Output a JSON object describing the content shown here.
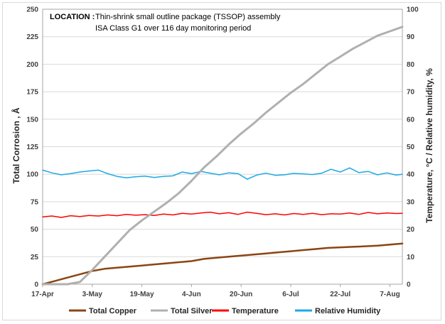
{
  "chart_data": {
    "type": "line",
    "annotation": {
      "label": "LOCATION :",
      "line1": "Thin-shrink small outline package (TSSOP) assembly",
      "line2": "ISA Class G1 over 116 day monitoring period"
    },
    "ylabel": "Total  Corrosion , Å",
    "y2label": "Temperature, °C / Relative humidity, %",
    "xlabel": "",
    "x_range_days": [
      0,
      116
    ],
    "ylim": [
      0,
      250
    ],
    "y2lim": [
      0,
      100
    ],
    "x_ticks": [
      {
        "label": "17-Apr",
        "day": 0
      },
      {
        "label": "3-May",
        "day": 16
      },
      {
        "label": "19-May",
        "day": 32
      },
      {
        "label": "4-Jun",
        "day": 48
      },
      {
        "label": "20-Jun",
        "day": 64
      },
      {
        "label": "6-Jul",
        "day": 80
      },
      {
        "label": "22-Jul",
        "day": 96
      },
      {
        "label": "7-Aug",
        "day": 112
      }
    ],
    "y_ticks": [
      0,
      25,
      50,
      75,
      100,
      125,
      150,
      175,
      200,
      225,
      250
    ],
    "y2_ticks": [
      0,
      10,
      20,
      30,
      40,
      50,
      60,
      70,
      80,
      90,
      100
    ],
    "series": [
      {
        "name": "Total Copper",
        "axis": "left",
        "color": "#8B4513",
        "width": 2.5,
        "x": [
          0,
          4,
          8,
          12,
          16,
          20,
          24,
          28,
          32,
          36,
          40,
          44,
          48,
          52,
          56,
          60,
          64,
          68,
          72,
          76,
          80,
          84,
          88,
          92,
          96,
          100,
          104,
          108,
          112,
          116
        ],
        "values": [
          0,
          3,
          6,
          9,
          12,
          14,
          15,
          16,
          17,
          18,
          19,
          20,
          21,
          23,
          24,
          25,
          26,
          27,
          28,
          29,
          30,
          31,
          32,
          33,
          33.5,
          34,
          34.5,
          35,
          36,
          37
        ]
      },
      {
        "name": "Total Silver",
        "axis": "left",
        "color": "#B0B0B0",
        "width": 3,
        "x": [
          0,
          8,
          12,
          16,
          20,
          24,
          28,
          32,
          36,
          40,
          44,
          48,
          52,
          56,
          60,
          64,
          68,
          72,
          76,
          80,
          84,
          88,
          92,
          96,
          100,
          104,
          108,
          112,
          116
        ],
        "values": [
          0,
          0,
          2,
          13,
          25,
          37,
          49,
          58,
          66,
          74,
          83,
          94,
          106,
          116,
          127,
          137,
          146,
          156,
          165,
          174,
          182,
          191,
          200,
          207,
          214,
          220,
          226,
          230,
          234
        ]
      },
      {
        "name": "Temperature",
        "axis": "right",
        "color": "#FF0000",
        "width": 1.5,
        "x": [
          0,
          3,
          6,
          9,
          12,
          15,
          18,
          21,
          24,
          27,
          30,
          33,
          36,
          39,
          42,
          45,
          48,
          51,
          54,
          57,
          60,
          63,
          66,
          69,
          72,
          75,
          78,
          81,
          84,
          87,
          90,
          93,
          96,
          99,
          102,
          105,
          108,
          111,
          114,
          116
        ],
        "values": [
          24.5,
          24.8,
          24.3,
          24.9,
          24.6,
          25.0,
          24.8,
          25.2,
          24.9,
          25.4,
          25.1,
          25.3,
          25.0,
          25.5,
          25.2,
          25.8,
          25.5,
          25.9,
          26.2,
          25.6,
          26.0,
          25.4,
          26.2,
          25.8,
          25.3,
          25.6,
          25.2,
          25.7,
          25.4,
          25.8,
          25.3,
          25.6,
          25.5,
          25.9,
          25.4,
          26.1,
          25.6,
          25.9,
          25.7,
          25.8
        ]
      },
      {
        "name": "Relative Humidity",
        "axis": "right",
        "color": "#1CA9E6",
        "width": 1.5,
        "x": [
          0,
          3,
          6,
          9,
          12,
          15,
          18,
          21,
          24,
          27,
          30,
          33,
          36,
          39,
          42,
          45,
          48,
          51,
          54,
          57,
          60,
          63,
          66,
          69,
          72,
          75,
          78,
          81,
          84,
          87,
          90,
          93,
          96,
          99,
          102,
          105,
          108,
          111,
          114,
          116
        ],
        "values": [
          41.5,
          40.5,
          39.8,
          40.2,
          40.8,
          41.2,
          41.5,
          40.2,
          39.2,
          38.7,
          39.1,
          39.3,
          38.8,
          39.2,
          39.4,
          40.8,
          40.2,
          41.0,
          40.4,
          39.8,
          40.5,
          40.2,
          38.2,
          39.7,
          40.4,
          39.6,
          39.8,
          40.3,
          40.1,
          39.9,
          40.4,
          41.8,
          40.8,
          42.3,
          40.6,
          41.0,
          39.8,
          40.5,
          39.7,
          40.0
        ]
      }
    ]
  }
}
